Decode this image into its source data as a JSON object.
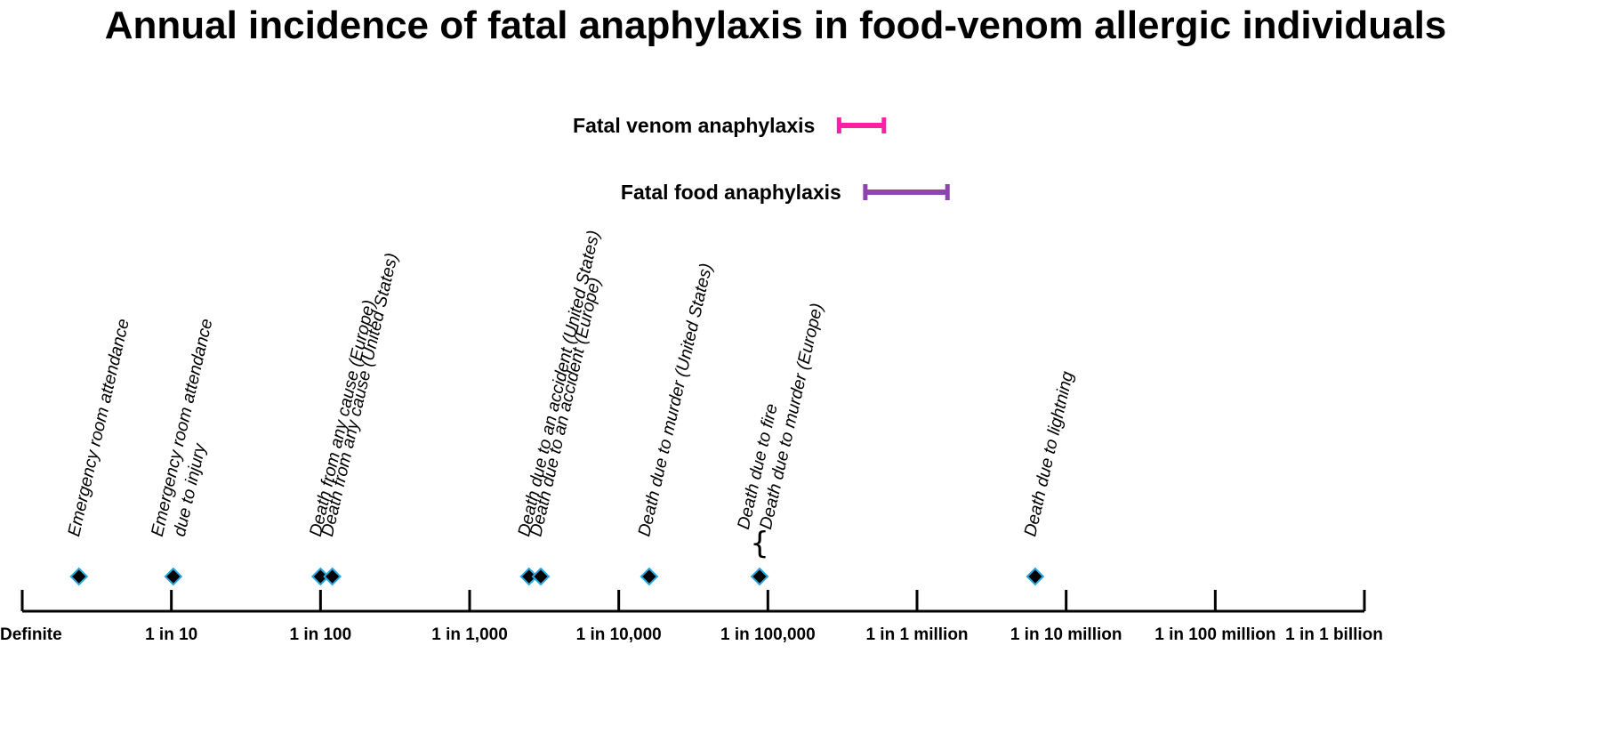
{
  "chart_data": {
    "type": "scatter",
    "title": "Annual incidence of fatal anaphylaxis in food-venom allergic individuals",
    "x_scale": "log10",
    "x_unit": "annual risk (1 in N)",
    "x_domain": [
      1,
      1000000000
    ],
    "ticks": [
      {
        "value": 1,
        "label": "Definite"
      },
      {
        "value": 10,
        "label": "1 in 10"
      },
      {
        "value": 100,
        "label": "1 in 100"
      },
      {
        "value": 1000,
        "label": "1 in 1,000"
      },
      {
        "value": 10000,
        "label": "1 in 10,000"
      },
      {
        "value": 100000,
        "label": "1 in 100,000"
      },
      {
        "value": 1000000,
        "label": "1 in 1 million"
      },
      {
        "value": 10000000,
        "label": "1 in 10 million"
      },
      {
        "value": 100000000,
        "label": "1 in 100 million"
      },
      {
        "value": 1000000000,
        "label": "1 in 1 billion"
      }
    ],
    "ranges": [
      {
        "label": "Fatal venom anaphylaxis",
        "color": "#ff1fa6",
        "x": [
          300000,
          600000
        ]
      },
      {
        "label": "Fatal food anaphylaxis",
        "color": "#8e44ad",
        "x": [
          450000,
          1600000
        ]
      }
    ],
    "events": [
      {
        "x": 2.4,
        "labels": [
          "Emergency room attendance"
        ]
      },
      {
        "x": 10.3,
        "labels": [
          "Emergency room attendance",
          "due to injury"
        ]
      },
      {
        "x": 100,
        "labels": [
          "Death from any cause (Europe)"
        ]
      },
      {
        "x": 120,
        "labels": [
          "Death from any cause (United States)"
        ]
      },
      {
        "x": 2500,
        "labels": [
          "Death due to an accident (United States)"
        ]
      },
      {
        "x": 3000,
        "labels": [
          "Death due to an accident (Europe)"
        ]
      },
      {
        "x": 16000,
        "labels": [
          "Death due to murder (United States)"
        ]
      },
      {
        "x": 88000,
        "labels": [
          "Death due to fire",
          "Death due to murder (Europe)"
        ],
        "brace": "{"
      },
      {
        "x": 6200000,
        "labels": [
          "Death due to lightning"
        ]
      }
    ],
    "marker_color": "#000000",
    "marker_outline": "#29a8e0"
  }
}
